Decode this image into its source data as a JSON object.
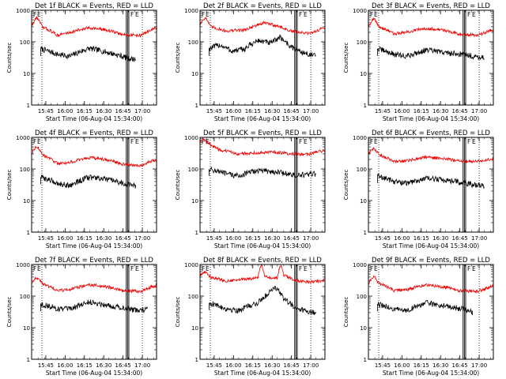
{
  "figure": {
    "colors": {
      "events": "#000000",
      "lld": "#ee0000",
      "axes": "#000000"
    }
  },
  "chart_data": [
    {
      "type": "line",
      "title": "Det 1f BLACK = Events, RED = LLD",
      "xlabel": "Start Time (06-Aug-04 15:34:00)",
      "ylabel": "Counts/sec",
      "yscale": "log",
      "ylim": [
        1,
        1000
      ],
      "yticks": [
        "1",
        "10",
        "100",
        "1000"
      ],
      "xticks": [
        "15:45",
        "16:00",
        "16:15",
        "16:30",
        "16:45",
        "17:00"
      ],
      "xlim_minutes": [
        0,
        97
      ],
      "markers": {
        "dotted_minutes": [
          8,
          86
        ],
        "solid_minutes": [
          73.5,
          74.5,
          75.5
        ],
        "flag_labels": [
          "F",
          "E",
          "F",
          "E"
        ]
      },
      "series": [
        {
          "name": "Events",
          "color": "#000000",
          "x_minutes": [
            7,
            20,
            30,
            45,
            60,
            75,
            81
          ],
          "values": [
            60,
            40,
            35,
            62,
            45,
            30,
            28
          ]
        },
        {
          "name": "LLD",
          "color": "#ee0000",
          "x_minutes": [
            0,
            4,
            8,
            20,
            30,
            45,
            60,
            70,
            85,
            97
          ],
          "values": [
            300,
            600,
            300,
            160,
            200,
            280,
            230,
            170,
            160,
            280
          ]
        }
      ]
    },
    {
      "type": "line",
      "title": "Det 2f BLACK = Events, RED = LLD",
      "xlabel": "Start Time (06-Aug-04 15:34:00)",
      "ylabel": "Counts/sec",
      "yscale": "log",
      "ylim": [
        1,
        1000
      ],
      "yticks": [
        "1",
        "10",
        "100",
        "1000"
      ],
      "xticks": [
        "15:45",
        "16:00",
        "16:15",
        "16:30",
        "16:45",
        "17:00"
      ],
      "xlim_minutes": [
        0,
        97
      ],
      "markers": {
        "dotted_minutes": [
          8,
          86
        ],
        "solid_minutes": [
          73.5,
          74.5,
          75.5
        ],
        "flag_labels": [
          "F",
          "E",
          "F",
          "E"
        ]
      },
      "series": [
        {
          "name": "Events",
          "color": "#000000",
          "x_minutes": [
            7,
            15,
            25,
            35,
            45,
            55,
            62,
            70,
            80,
            90
          ],
          "values": [
            60,
            80,
            50,
            60,
            110,
            90,
            140,
            70,
            45,
            35
          ]
        },
        {
          "name": "LLD",
          "color": "#ee0000",
          "x_minutes": [
            0,
            4,
            8,
            20,
            35,
            50,
            60,
            70,
            85,
            97
          ],
          "values": [
            350,
            600,
            300,
            220,
            240,
            400,
            320,
            220,
            180,
            280
          ]
        }
      ]
    },
    {
      "type": "line",
      "title": "Det 3f BLACK = Events, RED = LLD",
      "xlabel": "Start Time (06-Aug-04 15:34:00)",
      "ylabel": "Counts/sec",
      "yscale": "log",
      "ylim": [
        1,
        1000
      ],
      "yticks": [
        "1",
        "10",
        "100",
        "1000"
      ],
      "xticks": [
        "15:45",
        "16:00",
        "16:15",
        "16:30",
        "16:45",
        "17:00"
      ],
      "xlim_minutes": [
        0,
        97
      ],
      "markers": {
        "dotted_minutes": [
          8,
          86
        ],
        "solid_minutes": [
          73.5,
          74.5,
          75.5
        ],
        "flag_labels": [
          "F",
          "E",
          "F",
          "E"
        ]
      },
      "series": [
        {
          "name": "Events",
          "color": "#000000",
          "x_minutes": [
            7,
            20,
            30,
            45,
            60,
            75,
            81,
            90
          ],
          "values": [
            60,
            40,
            35,
            55,
            45,
            40,
            35,
            32
          ]
        },
        {
          "name": "LLD",
          "color": "#ee0000",
          "x_minutes": [
            0,
            4,
            8,
            20,
            30,
            45,
            60,
            70,
            85,
            97
          ],
          "values": [
            300,
            550,
            300,
            180,
            200,
            270,
            230,
            180,
            160,
            240
          ]
        }
      ]
    },
    {
      "type": "line",
      "title": "Det 4f BLACK = Events, RED = LLD",
      "xlabel": "Start Time (06-Aug-04 15:34:00)",
      "ylabel": "Counts/sec",
      "yscale": "log",
      "ylim": [
        1,
        1000
      ],
      "yticks": [
        "1",
        "10",
        "100",
        "1000"
      ],
      "xticks": [
        "15:45",
        "16:00",
        "16:15",
        "16:30",
        "16:45",
        "17:00"
      ],
      "xlim_minutes": [
        0,
        97
      ],
      "markers": {
        "dotted_minutes": [
          8,
          86
        ],
        "solid_minutes": [
          73.5,
          74.5,
          75.5
        ],
        "flag_labels": [
          "F",
          "E",
          "F",
          "E"
        ]
      },
      "series": [
        {
          "name": "Events",
          "color": "#000000",
          "x_minutes": [
            7,
            20,
            30,
            45,
            60,
            75,
            81
          ],
          "values": [
            55,
            35,
            30,
            55,
            45,
            32,
            28
          ]
        },
        {
          "name": "LLD",
          "color": "#ee0000",
          "x_minutes": [
            0,
            4,
            8,
            20,
            30,
            45,
            60,
            70,
            85,
            97
          ],
          "values": [
            300,
            550,
            280,
            150,
            160,
            230,
            190,
            140,
            130,
            200
          ]
        }
      ]
    },
    {
      "type": "line",
      "title": "Det 5f BLACK = Events, RED = LLD",
      "xlabel": "Start Time (06-Aug-04 15:34:00)",
      "ylabel": "Counts/sec",
      "yscale": "log",
      "ylim": [
        1,
        1000
      ],
      "yticks": [
        "1",
        "10",
        "100",
        "1000"
      ],
      "xticks": [
        "15:45",
        "16:00",
        "16:15",
        "16:30",
        "16:45",
        "17:00"
      ],
      "xlim_minutes": [
        0,
        97
      ],
      "markers": {
        "dotted_minutes": [
          8,
          86
        ],
        "solid_minutes": [
          73.5,
          74.5,
          75.5
        ],
        "flag_labels": [
          "F",
          "E",
          "F",
          "E"
        ]
      },
      "series": [
        {
          "name": "Events",
          "color": "#000000",
          "x_minutes": [
            7,
            20,
            30,
            45,
            60,
            75,
            81,
            90
          ],
          "values": [
            100,
            70,
            60,
            90,
            80,
            60,
            65,
            70
          ]
        },
        {
          "name": "LLD",
          "color": "#ee0000",
          "x_minutes": [
            0,
            3,
            6,
            15,
            30,
            45,
            60,
            70,
            85,
            97
          ],
          "values": [
            700,
            900,
            650,
            400,
            300,
            330,
            340,
            300,
            290,
            400
          ]
        }
      ]
    },
    {
      "type": "line",
      "title": "Det 6f BLACK = Events, RED = LLD",
      "xlabel": "Start Time (06-Aug-04 15:34:00)",
      "ylabel": "Counts/sec",
      "yscale": "log",
      "ylim": [
        1,
        1000
      ],
      "yticks": [
        "1",
        "10",
        "100",
        "1000"
      ],
      "xticks": [
        "15:45",
        "16:00",
        "16:15",
        "16:30",
        "16:45",
        "17:00"
      ],
      "xlim_minutes": [
        0,
        97
      ],
      "markers": {
        "dotted_minutes": [
          8,
          86
        ],
        "solid_minutes": [
          73.5,
          74.5,
          75.5
        ],
        "flag_labels": [
          "F",
          "E",
          "F",
          "E"
        ]
      },
      "series": [
        {
          "name": "Events",
          "color": "#000000",
          "x_minutes": [
            7,
            20,
            30,
            45,
            60,
            75,
            81,
            90
          ],
          "values": [
            60,
            40,
            35,
            50,
            45,
            35,
            32,
            30
          ]
        },
        {
          "name": "LLD",
          "color": "#ee0000",
          "x_minutes": [
            0,
            4,
            8,
            20,
            30,
            45,
            60,
            70,
            85,
            97
          ],
          "values": [
            280,
            450,
            280,
            170,
            180,
            240,
            210,
            180,
            170,
            210
          ]
        }
      ]
    },
    {
      "type": "line",
      "title": "Det 7f BLACK = Events, RED = LLD",
      "xlabel": "Start Time (06-Aug-04 15:34:00)",
      "ylabel": "Counts/sec",
      "yscale": "log",
      "ylim": [
        1,
        1000
      ],
      "yticks": [
        "1",
        "10",
        "100",
        "1000"
      ],
      "xticks": [
        "15:45",
        "16:00",
        "16:15",
        "16:30",
        "16:45",
        "17:00"
      ],
      "xlim_minutes": [
        0,
        97
      ],
      "markers": {
        "dotted_minutes": [
          8,
          86
        ],
        "solid_minutes": [
          73.5,
          74.5,
          75.5
        ],
        "flag_labels": [
          "F",
          "E",
          "F",
          "E"
        ]
      },
      "series": [
        {
          "name": "Events",
          "color": "#000000",
          "x_minutes": [
            7,
            20,
            30,
            45,
            60,
            75,
            81,
            90
          ],
          "values": [
            55,
            40,
            38,
            65,
            50,
            40,
            35,
            38
          ]
        },
        {
          "name": "LLD",
          "color": "#ee0000",
          "x_minutes": [
            0,
            4,
            8,
            20,
            30,
            45,
            60,
            70,
            85,
            97
          ],
          "values": [
            250,
            400,
            250,
            150,
            160,
            230,
            190,
            150,
            140,
            220
          ]
        }
      ]
    },
    {
      "type": "line",
      "title": "Det 8f BLACK = Events, RED = LLD",
      "xlabel": "Start Time (06-Aug-04 15:34:00)",
      "ylabel": "Counts/sec",
      "yscale": "log",
      "ylim": [
        1,
        1000
      ],
      "yticks": [
        "1",
        "10",
        "100",
        "1000"
      ],
      "xticks": [
        "15:45",
        "16:00",
        "16:15",
        "16:30",
        "16:45",
        "17:00"
      ],
      "xlim_minutes": [
        0,
        97
      ],
      "markers": {
        "dotted_minutes": [
          8,
          86
        ],
        "solid_minutes": [
          73.5,
          74.5,
          75.5
        ],
        "flag_labels": [
          "F",
          "E",
          "F",
          "E"
        ]
      },
      "series": [
        {
          "name": "Events",
          "color": "#000000",
          "x_minutes": [
            7,
            20,
            30,
            45,
            52,
            58,
            62,
            65,
            72,
            80,
            90
          ],
          "values": [
            60,
            40,
            35,
            60,
            110,
            200,
            130,
            80,
            50,
            35,
            30
          ]
        },
        {
          "name": "LLD",
          "color": "#ee0000",
          "x_minutes": [
            0,
            4,
            8,
            20,
            30,
            45,
            48,
            50,
            60,
            63,
            65,
            75,
            85,
            97
          ],
          "values": [
            450,
            600,
            400,
            300,
            330,
            380,
            1000,
            400,
            380,
            1000,
            450,
            300,
            280,
            320
          ]
        }
      ]
    },
    {
      "type": "line",
      "title": "Det 9f BLACK = Events, RED = LLD",
      "xlabel": "Start Time (06-Aug-04 15:34:00)",
      "ylabel": "Counts/sec",
      "yscale": "log",
      "ylim": [
        1,
        1000
      ],
      "yticks": [
        "1",
        "10",
        "100",
        "1000"
      ],
      "xticks": [
        "15:45",
        "16:00",
        "16:15",
        "16:30",
        "16:45",
        "17:00"
      ],
      "xlim_minutes": [
        0,
        97
      ],
      "markers": {
        "dotted_minutes": [
          8,
          86
        ],
        "solid_minutes": [
          73.5,
          74.5,
          75.5
        ],
        "flag_labels": [
          "F",
          "E",
          "F",
          "E"
        ]
      },
      "series": [
        {
          "name": "Events",
          "color": "#000000",
          "x_minutes": [
            7,
            20,
            30,
            45,
            60,
            75,
            81
          ],
          "values": [
            55,
            38,
            35,
            60,
            48,
            38,
            30
          ]
        },
        {
          "name": "LLD",
          "color": "#ee0000",
          "x_minutes": [
            0,
            4,
            8,
            20,
            30,
            45,
            60,
            70,
            85,
            97
          ],
          "values": [
            250,
            420,
            250,
            150,
            160,
            230,
            190,
            150,
            140,
            210
          ]
        }
      ]
    }
  ]
}
